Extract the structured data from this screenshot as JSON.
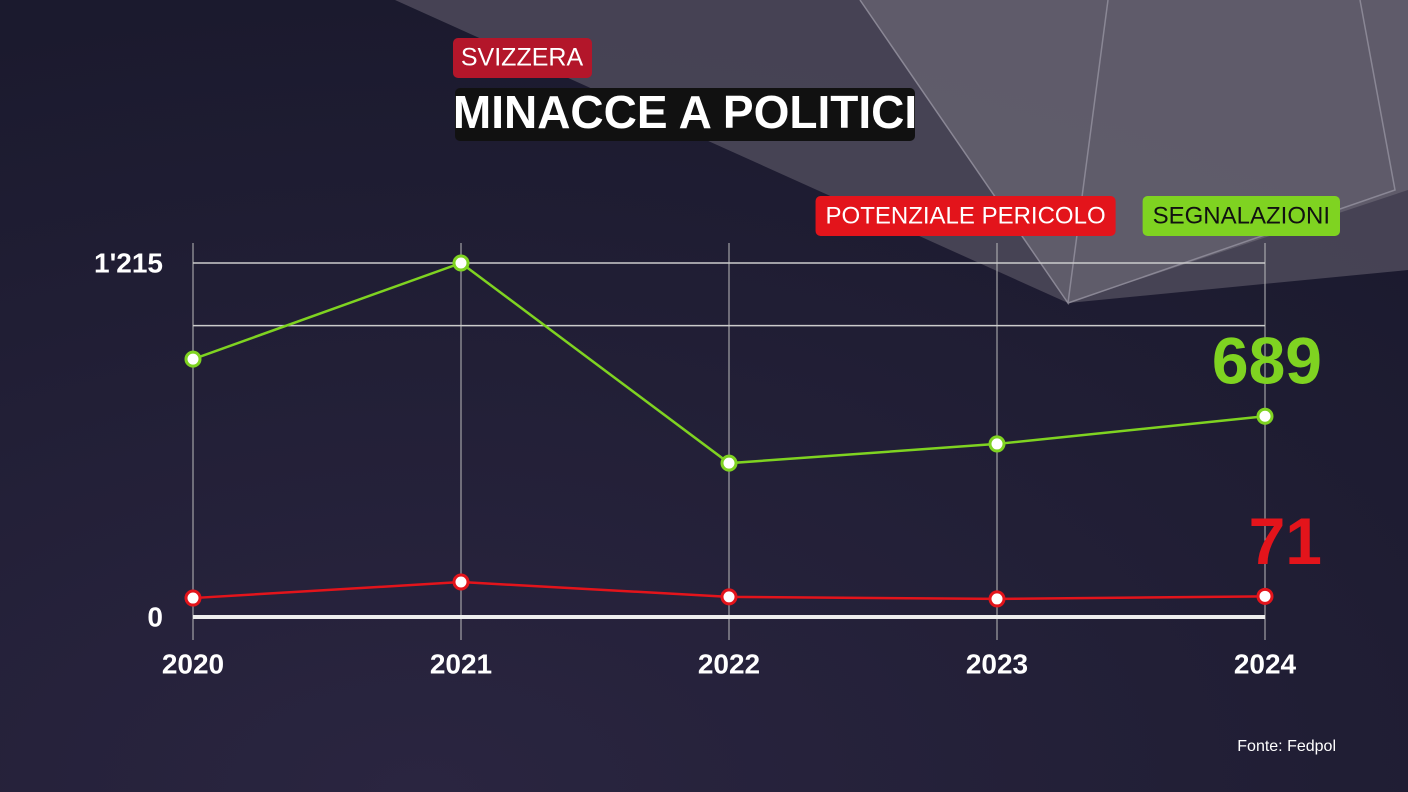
{
  "kicker": "SVIZZERA",
  "source": "Fonte: Fedpol",
  "chart_data": {
    "type": "line",
    "title": "MINACCE A POLITICI",
    "categories": [
      "2020",
      "2021",
      "2022",
      "2023",
      "2024"
    ],
    "series": [
      {
        "name": "POTENZIALE PERICOLO",
        "color": "#e3141b",
        "values": [
          65,
          120,
          69,
          62,
          71
        ]
      },
      {
        "name": "SEGNALAZIONI",
        "color": "#7fd321",
        "values": [
          885,
          1215,
          528,
          594,
          689
        ]
      }
    ],
    "ylim": [
      0,
      1215
    ],
    "yticks": [
      0,
      {
        "value": 1215,
        "label": "1'215"
      }
    ],
    "ygrid": [
      1000
    ],
    "grid": true,
    "legend": "top-right"
  }
}
